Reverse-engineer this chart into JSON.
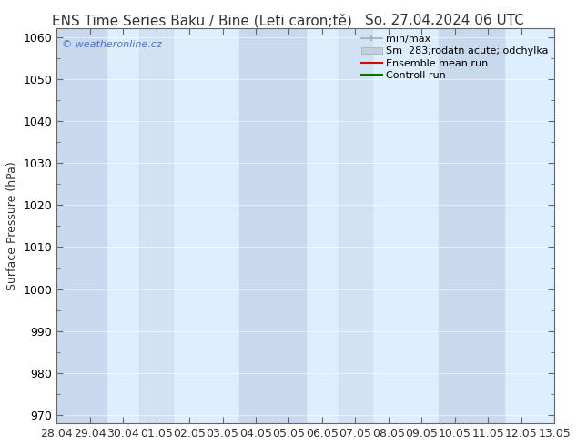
{
  "title_left": "ENS Time Series Baku / Bine (Leti caron;tě)",
  "title_right": "So. 27.04.2024 06 UTC",
  "ylabel": "Surface Pressure (hPa)",
  "ylim": [
    968,
    1062
  ],
  "yticks": [
    970,
    980,
    990,
    1000,
    1010,
    1020,
    1030,
    1040,
    1050,
    1060
  ],
  "bg_color": "#ffffff",
  "plot_bg_color": "#ffffff",
  "band_color_light": "#ddeeff",
  "band_color_dark": "#c8d8ed",
  "watermark": "© weatheronline.cz",
  "legend_labels": [
    "min/max",
    "Sm  283;rodatn acute; odchylka",
    "Ensemble mean run",
    "Controll run"
  ],
  "xtick_labels": [
    "28.04",
    "29.04",
    "30.04",
    "01.05",
    "02.05",
    "03.05",
    "04.05",
    "05.05",
    "06.05",
    "07.05",
    "08.05",
    "09.05",
    "10.05",
    "11.05",
    "12.05",
    "13.05"
  ],
  "title_fontsize": 11,
  "axis_fontsize": 9,
  "tick_fontsize": 9,
  "legend_fontsize": 8,
  "watermark_color": "#4477cc",
  "text_color": "#333333",
  "spine_color": "#666666",
  "minmax_color": "#aaaaaa",
  "fill_color": "#c0d0e0",
  "ens_color": "#dd0000",
  "ctrl_color": "#007700"
}
